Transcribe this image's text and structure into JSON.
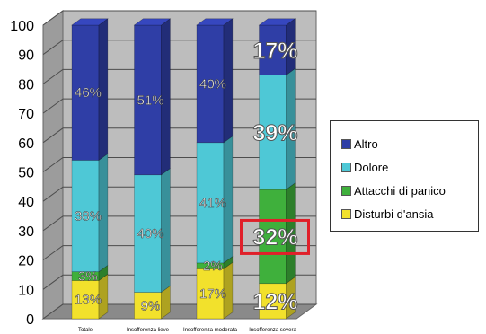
{
  "chart_data": {
    "type": "bar",
    "stacked": true,
    "three_d": true,
    "categories": [
      "Totale",
      "Insofferenza lieve",
      "Insofferenza moderata",
      "Insofferenza severa"
    ],
    "ylim": [
      0,
      100
    ],
    "yticks": [
      "0",
      "10",
      "20",
      "30",
      "40",
      "50",
      "60",
      "70",
      "80",
      "90",
      "100"
    ],
    "series": [
      {
        "name": "Disturbi d'ansia",
        "color": "#f2e12c",
        "values": [
          13,
          9,
          17,
          12
        ],
        "labels": [
          "13%",
          "9%",
          "17%",
          "12%"
        ]
      },
      {
        "name": "Attacchi di panico",
        "color": "#3fb03c",
        "values": [
          3,
          0,
          2,
          32
        ],
        "labels": [
          "3%",
          "",
          "2%",
          "32%"
        ]
      },
      {
        "name": "Dolore",
        "color": "#4ec8d6",
        "values": [
          38,
          40,
          41,
          39
        ],
        "labels": [
          "38%",
          "40%",
          "41%",
          "39%"
        ]
      },
      {
        "name": "Altro",
        "color": "#2f3ea6",
        "values": [
          46,
          51,
          40,
          17
        ],
        "labels": [
          "46%",
          "51%",
          "40%",
          "17%"
        ]
      }
    ],
    "legend": {
      "position": "right",
      "order": [
        "Altro",
        "Dolore",
        "Attacchi di panico",
        "Disturbi d'ansia"
      ]
    },
    "highlight": {
      "category_index": 3,
      "series": "Attacchi di panico",
      "color": "#e0202a"
    },
    "grid": true
  }
}
